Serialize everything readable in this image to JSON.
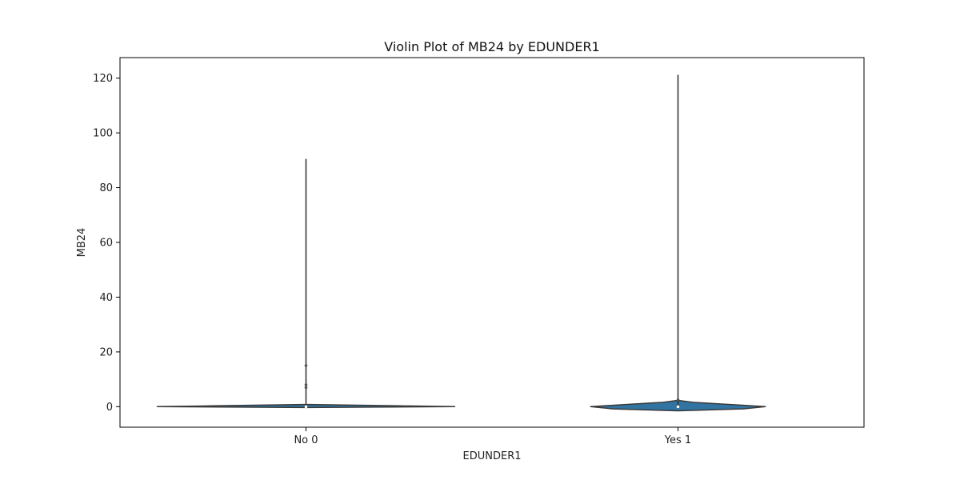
{
  "chart_data": {
    "type": "violin",
    "title": "Violin Plot of MB24 by EDUNDER1",
    "xlabel": "EDUNDER1",
    "ylabel": "MB24",
    "categories": [
      "No 0",
      "Yes 1"
    ],
    "ylim": [
      -7.5,
      127.5
    ],
    "yticks": [
      0,
      20,
      40,
      60,
      80,
      100,
      120
    ],
    "grid": false,
    "colors": {
      "violin_fill": "#3274a1",
      "violin_edge": "#3a3a3a",
      "axis": "#000000"
    },
    "violins": [
      {
        "category": "No 0",
        "min": 0,
        "max": 90.5,
        "median": 0,
        "outlier_marks": [
          15,
          8,
          7
        ],
        "density_profile": [
          {
            "y": -0.3,
            "half_width": 0
          },
          {
            "y": 0,
            "half_width": 0.8
          },
          {
            "y": 0.3,
            "half_width": 0.5
          },
          {
            "y": 0.8,
            "half_width": 0.02
          }
        ]
      },
      {
        "category": "Yes 1",
        "min": 0,
        "max": 121.2,
        "median": 0,
        "outlier_marks": [
          2.5
        ],
        "density_profile": [
          {
            "y": -1.5,
            "half_width": 0
          },
          {
            "y": -0.8,
            "half_width": 0.35
          },
          {
            "y": 0,
            "half_width": 0.47
          },
          {
            "y": 0.7,
            "half_width": 0.3
          },
          {
            "y": 1.6,
            "half_width": 0.08
          },
          {
            "y": 2.2,
            "half_width": 0.01
          }
        ]
      }
    ]
  }
}
